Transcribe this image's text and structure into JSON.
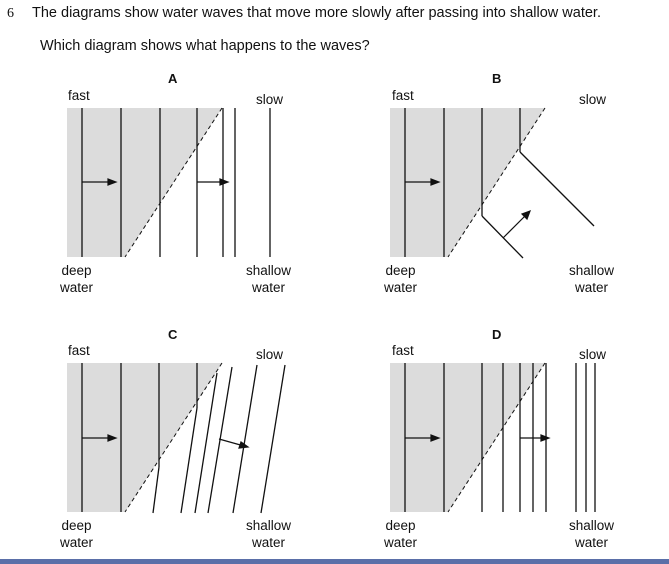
{
  "question": {
    "number": "6",
    "text": "The diagrams show water waves that move more slowly after passing into shallow water.",
    "prompt": "Which diagram shows what happens to the waves?"
  },
  "labels": {
    "fast": "fast",
    "slow": "slow",
    "deep_line1": "deep",
    "deep_line2": "water",
    "shallow_line1": "shallow",
    "shallow_line2": "water"
  },
  "diagrams": [
    {
      "letter": "A"
    },
    {
      "letter": "B"
    },
    {
      "letter": "C"
    },
    {
      "letter": "D"
    }
  ],
  "colors": {
    "deep_region_fill": "#dcdcdc",
    "wavefront_line": "#111111",
    "bottom_rule": "#5a6fa8"
  }
}
